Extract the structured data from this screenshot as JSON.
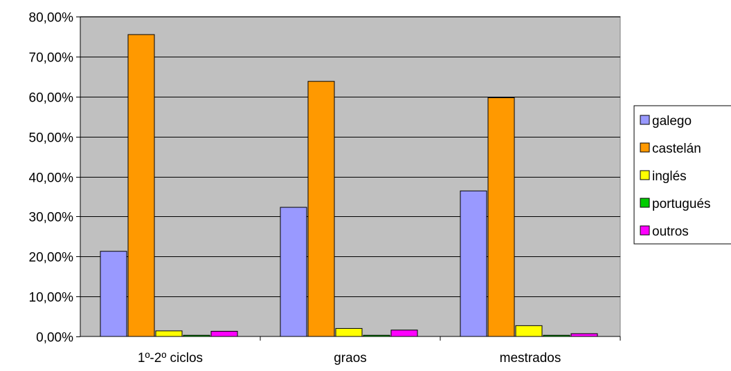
{
  "chart_data": {
    "type": "bar",
    "title": "",
    "xlabel": "",
    "ylabel": "",
    "categories": [
      "1º-2º ciclos",
      "graos",
      "mestrados"
    ],
    "series": [
      {
        "name": "galego",
        "color": "#9999ff",
        "values": [
          21.3,
          32.3,
          36.4
        ]
      },
      {
        "name": "castelán",
        "color": "#ff9900",
        "values": [
          75.5,
          63.8,
          59.7
        ]
      },
      {
        "name": "inglés",
        "color": "#ffff00",
        "values": [
          1.4,
          2.0,
          2.7
        ]
      },
      {
        "name": "portugués",
        "color": "#00cc00",
        "values": [
          0.3,
          0.3,
          0.3
        ]
      },
      {
        "name": "outros",
        "color": "#ff00ff",
        "values": [
          1.3,
          1.6,
          0.7
        ]
      }
    ],
    "ylim": [
      0,
      80
    ],
    "y_ticks": [
      "0,00%",
      "10,00%",
      "20,00%",
      "30,00%",
      "40,00%",
      "50,00%",
      "60,00%",
      "70,00%",
      "80,00%"
    ],
    "grid": true,
    "plot_background": "#c0c0c0",
    "legend_position": "right"
  }
}
